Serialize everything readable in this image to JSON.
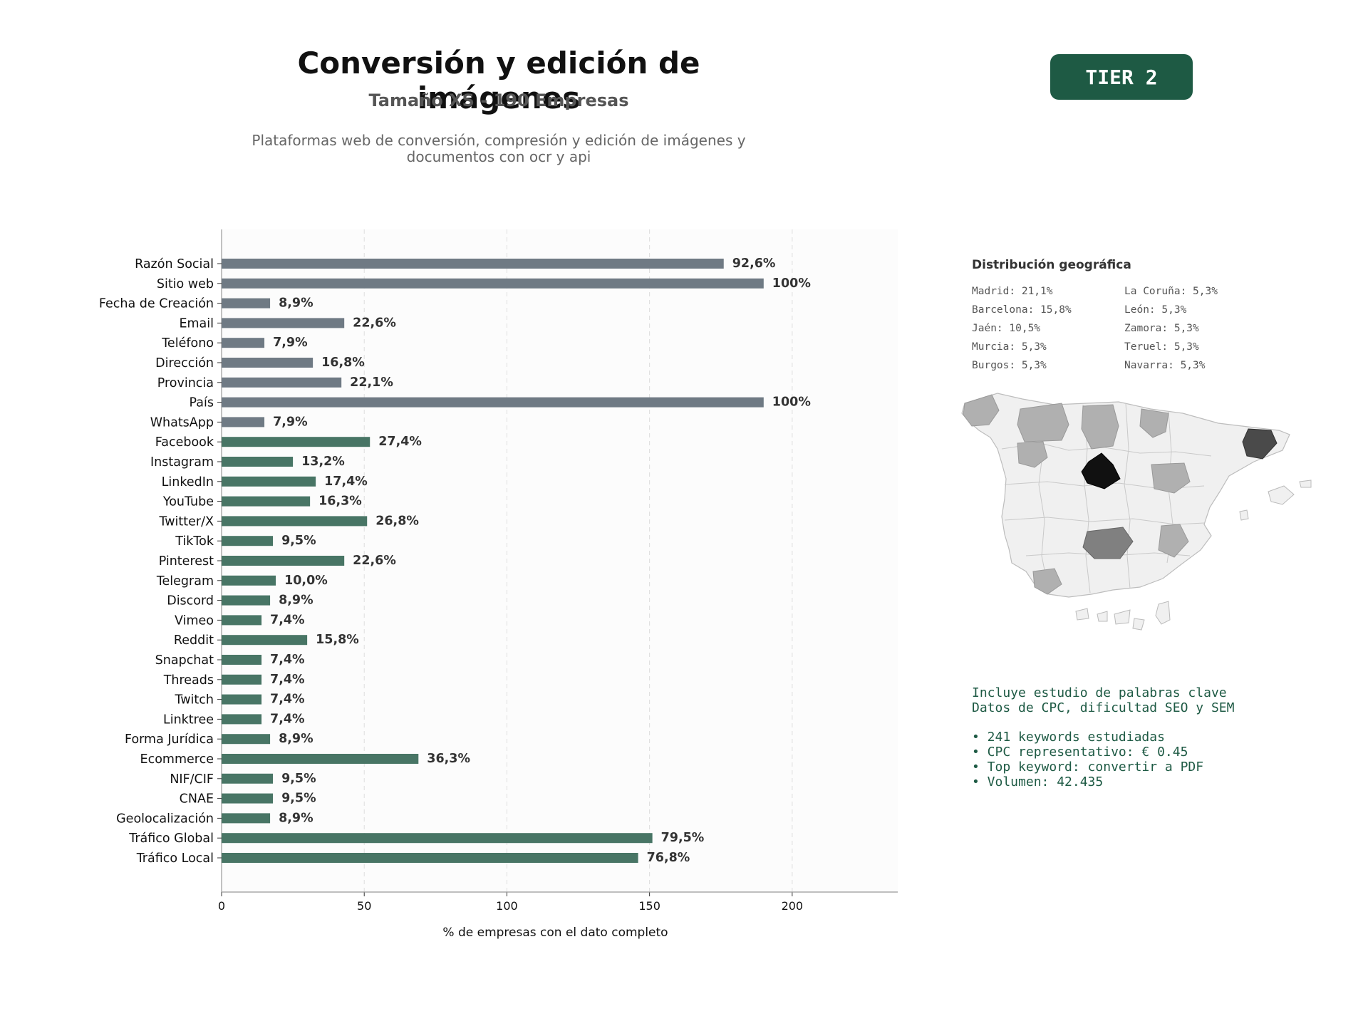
{
  "header": {
    "title": "Conversión y edición de imágenes",
    "subtitle": "Tamaño XS - 190 Empresas",
    "description_line1": "Plataformas web de conversión, compresión y edición de imágenes y",
    "description_line2": "documentos con ocr y api",
    "tier_label": "TIER 2"
  },
  "colors": {
    "gray_bar": "#6f7a84",
    "green_bar": "#487565",
    "accent": "#1e5a44"
  },
  "chart_data": {
    "type": "bar",
    "orientation": "horizontal",
    "xlabel": "% de empresas con el dato completo",
    "xlim": [
      0,
      237
    ],
    "xticks": [
      0,
      50,
      100,
      150,
      200
    ],
    "grid": "vertical dashed",
    "categories": [
      "Razón Social",
      "Sitio web",
      "Fecha de Creación",
      "Email",
      "Teléfono",
      "Dirección",
      "Provincia",
      "País",
      "WhatsApp",
      "Facebook",
      "Instagram",
      "LinkedIn",
      "YouTube",
      "Twitter/X",
      "TikTok",
      "Pinterest",
      "Telegram",
      "Discord",
      "Vimeo",
      "Reddit",
      "Snapchat",
      "Threads",
      "Twitch",
      "Linktree",
      "Forma Jurídica",
      "Ecommerce",
      "NIF/CIF",
      "CNAE",
      "Geolocalización",
      "Tráfico Global",
      "Tráfico Local"
    ],
    "values": [
      176,
      190,
      17,
      43,
      15,
      32,
      42,
      190,
      15,
      52,
      25,
      33,
      31,
      51,
      18,
      43,
      19,
      17,
      14,
      30,
      14,
      14,
      14,
      14,
      17,
      69,
      18,
      18,
      17,
      151,
      146
    ],
    "labels": [
      "92,6%",
      "100%",
      "8,9%",
      "22,6%",
      "7,9%",
      "16,8%",
      "22,1%",
      "100%",
      "7,9%",
      "27,4%",
      "13,2%",
      "17,4%",
      "16,3%",
      "26,8%",
      "9,5%",
      "22,6%",
      "10,0%",
      "8,9%",
      "7,4%",
      "15,8%",
      "7,4%",
      "7,4%",
      "7,4%",
      "7,4%",
      "8,9%",
      "36,3%",
      "9,5%",
      "9,5%",
      "8,9%",
      "79,5%",
      "76,8%"
    ],
    "groups": [
      "gray",
      "gray",
      "gray",
      "gray",
      "gray",
      "gray",
      "gray",
      "gray",
      "gray",
      "green",
      "green",
      "green",
      "green",
      "green",
      "green",
      "green",
      "green",
      "green",
      "green",
      "green",
      "green",
      "green",
      "green",
      "green",
      "green",
      "green",
      "green",
      "green",
      "green",
      "green",
      "green"
    ]
  },
  "geo": {
    "title": "Distribución geográfica",
    "items": [
      "Madrid: 21,1%",
      "La Coruña: 5,3%",
      "Barcelona: 15,8%",
      "León: 5,3%",
      "Jaén: 10,5%",
      "Zamora: 5,3%",
      "Murcia: 5,3%",
      "Teruel: 5,3%",
      "Burgos: 5,3%",
      "Navarra: 5,3%"
    ]
  },
  "seo": {
    "line1": "Incluye estudio de palabras clave",
    "line2": "Datos de CPC, dificultad SEO y SEM",
    "bullets": [
      "• 241 keywords estudiadas",
      "• CPC representativo: € 0.45",
      "• Top keyword: convertir a PDF",
      "• Volumen: 42.435"
    ]
  }
}
